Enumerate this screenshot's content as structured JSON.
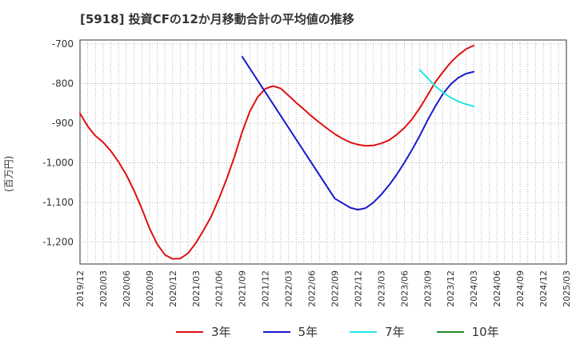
{
  "chart_data": {
    "type": "line",
    "title": "[5918]  投資CFの12か月移動合計の平均値の推移",
    "xlabel": "",
    "ylabel": "(百万円)",
    "ylim": [
      -1255,
      -690
    ],
    "yticks": [
      -700,
      -800,
      -900,
      -1000,
      -1100,
      -1200
    ],
    "ytick_labels": [
      "-700",
      "-800",
      "-900",
      "-1,000",
      "-1,100",
      "-1,200"
    ],
    "xticks": [
      "2019/12",
      "2020/03",
      "2020/06",
      "2020/09",
      "2020/12",
      "2021/03",
      "2021/06",
      "2021/09",
      "2021/12",
      "2022/03",
      "2022/06",
      "2022/09",
      "2022/12",
      "2023/03",
      "2023/06",
      "2023/09",
      "2023/12",
      "2024/03",
      "2024/06",
      "2024/09",
      "2024/12",
      "2025/03"
    ],
    "grid": true,
    "series": [
      {
        "name": "3年",
        "color": "#dd1111",
        "x": [
          "2019/12",
          "2020/01",
          "2020/02",
          "2020/03",
          "2020/04",
          "2020/05",
          "2020/06",
          "2020/07",
          "2020/08",
          "2020/09",
          "2020/10",
          "2020/11",
          "2020/12",
          "2021/01",
          "2021/02",
          "2021/03",
          "2021/04",
          "2021/05",
          "2021/06",
          "2021/07",
          "2021/08",
          "2021/09",
          "2021/10",
          "2021/11",
          "2021/12",
          "2022/01",
          "2022/02",
          "2022/03",
          "2022/04",
          "2022/05",
          "2022/06",
          "2022/07",
          "2022/08",
          "2022/09",
          "2022/10",
          "2022/11",
          "2022/12",
          "2023/01",
          "2023/02",
          "2023/03",
          "2023/04",
          "2023/05",
          "2023/06",
          "2023/07",
          "2023/08",
          "2023/09",
          "2023/10",
          "2023/11",
          "2023/12",
          "2024/01",
          "2024/02",
          "2024/03"
        ],
        "values": [
          -875,
          -908,
          -932,
          -948,
          -970,
          -998,
          -1030,
          -1070,
          -1115,
          -1165,
          -1205,
          -1232,
          -1242,
          -1241,
          -1228,
          -1202,
          -1170,
          -1135,
          -1090,
          -1040,
          -985,
          -922,
          -870,
          -834,
          -813,
          -806,
          -812,
          -830,
          -848,
          -865,
          -882,
          -898,
          -913,
          -927,
          -939,
          -948,
          -954,
          -957,
          -956,
          -951,
          -943,
          -929,
          -912,
          -890,
          -862,
          -830,
          -797,
          -771,
          -747,
          -728,
          -713,
          -704
        ]
      },
      {
        "name": "5年",
        "color": "#1a1acc",
        "x": [
          "2021/09",
          "2022/09",
          "2022/11",
          "2022/12",
          "2023/01",
          "2023/02",
          "2023/03",
          "2023/04",
          "2023/05",
          "2023/06",
          "2023/07",
          "2023/08",
          "2023/09",
          "2023/10",
          "2023/11",
          "2023/12",
          "2024/01",
          "2024/02",
          "2024/03"
        ],
        "values": [
          -732,
          -1090,
          -1113,
          -1118,
          -1114,
          -1100,
          -1080,
          -1057,
          -1030,
          -1000,
          -967,
          -932,
          -893,
          -858,
          -826,
          -802,
          -785,
          -775,
          -770
        ]
      },
      {
        "name": "7年",
        "color": "#22e5e5",
        "x": [
          "2023/08",
          "2023/09",
          "2023/10",
          "2023/11",
          "2023/12",
          "2024/01",
          "2024/02",
          "2024/03"
        ],
        "values": [
          -765,
          -786,
          -806,
          -822,
          -835,
          -845,
          -852,
          -857
        ]
      },
      {
        "name": "10年",
        "color": "#228822",
        "x": [],
        "values": []
      }
    ]
  }
}
